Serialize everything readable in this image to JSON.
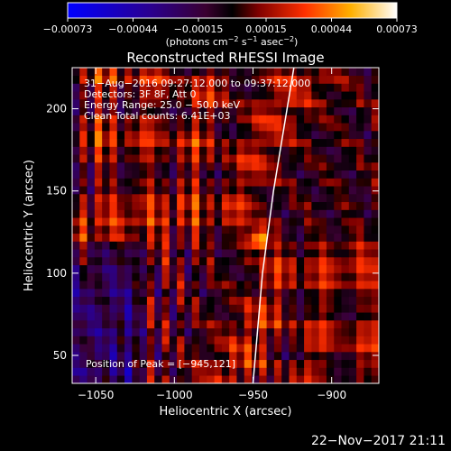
{
  "chart_data": {
    "type": "heatmap",
    "title": "Reconstructed RHESSI Image",
    "xlabel": "Heliocentric X (arcsec)",
    "ylabel": "Heliocentric Y (arcsec)",
    "xlim": [
      -1065,
      -870
    ],
    "ylim": [
      33,
      225
    ],
    "x_ticks": [
      -1050,
      -1000,
      -950,
      -900
    ],
    "x_tick_labels": [
      "−1050",
      "−1000",
      "−950",
      "−900"
    ],
    "y_ticks": [
      50,
      100,
      150,
      200
    ],
    "y_tick_labels": [
      "50",
      "100",
      "150",
      "200"
    ],
    "colorbar": {
      "ticks": [
        -0.00073,
        -0.00044,
        -0.00015,
        0.00015,
        0.00044,
        0.00073
      ],
      "tick_labels": [
        "−0.00073",
        "−0.00044",
        "−0.00015",
        "0.00015",
        "0.00044",
        "0.00073"
      ],
      "range": [
        -0.00073,
        0.00073
      ],
      "unit_prefix": "(photons cm",
      "unit_exp1": "−2",
      "unit_mid1": " s",
      "unit_exp2": "−1",
      "unit_mid2": " asec",
      "unit_exp3": "−2",
      "unit_suffix": ")"
    },
    "annotations": [
      "31−Aug−2016 09:27:12.000 to 09:37:12.000",
      "Detectors: 3F 8F, Att 0",
      "Energy Range: 25.0 − 50.0 keV",
      "Clean    Total counts: 6.41E+03"
    ],
    "peak_label": "Position of Peak = [−945,121]",
    "peak": [
      -945,
      121
    ],
    "limb_curve": [
      [
        -950,
        33
      ],
      [
        -944,
        100
      ],
      [
        -937,
        150
      ],
      [
        -924,
        225
      ]
    ],
    "grid": false
  },
  "footer_date": "22−Nov−2017 21:11"
}
